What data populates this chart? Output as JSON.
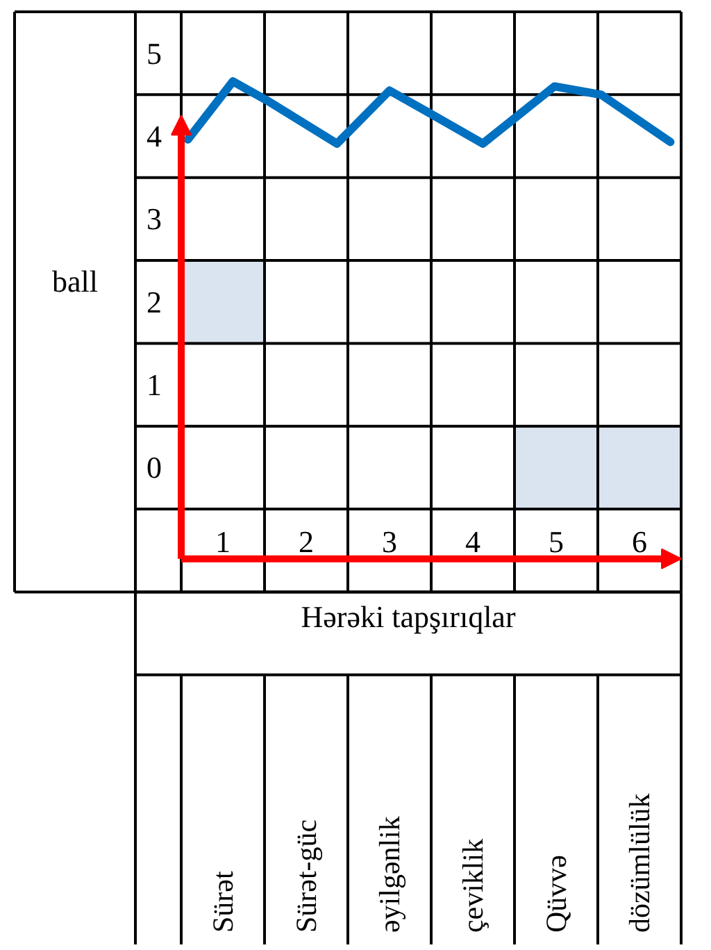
{
  "chart_data": {
    "type": "line",
    "xlabel": "Hərəki tapşırıqlar",
    "ylabel": "ball",
    "annotations": [
      "Sürət",
      "Sürət-güc",
      "əyilgənlik",
      "çeviklik",
      "Qüvvə",
      "dözümlülük"
    ],
    "xlim": [
      0.5,
      6.5
    ],
    "xticks": [
      1,
      2,
      3,
      4,
      5,
      6
    ],
    "ylim": [
      -1.5,
      5.5
    ],
    "yticks": [
      0,
      1,
      2,
      3,
      4,
      5
    ],
    "grid": true,
    "series": [
      {
        "type": "bar",
        "x": [
          1,
          5,
          6
        ],
        "base": [
          1.5,
          -0.5,
          -0.5
        ],
        "values": [
          1,
          1,
          1
        ],
        "color": "#dae3f0"
      },
      {
        "x": [
          0.58,
          1.12,
          1.53,
          2.37,
          3.0,
          3.53,
          4.12,
          4.98,
          5.54,
          6.37
        ],
        "values": [
          3.96,
          4.66,
          4.43,
          3.91,
          4.55,
          4.25,
          3.91,
          4.6,
          4.5,
          3.93
        ],
        "color": "#0070c0"
      }
    ]
  }
}
